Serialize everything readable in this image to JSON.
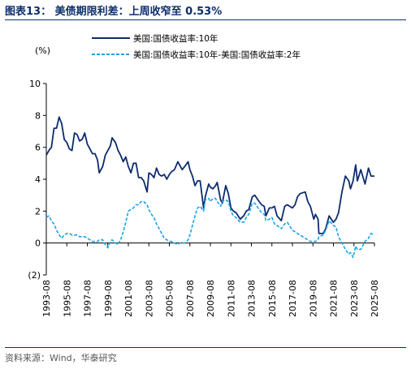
{
  "header": {
    "title": "图表13：  美债期限利差：上周收窄至 0.53%"
  },
  "footer": {
    "source": "资料来源：Wind，华泰研究"
  },
  "chart_data": {
    "type": "line",
    "title": "",
    "xlabel": "",
    "ylabel": "(%)",
    "ylim": [
      -2,
      10
    ],
    "yticks": [
      -2,
      0,
      2,
      4,
      6,
      8,
      10
    ],
    "ytick_labels": [
      "(2)",
      "0",
      "2",
      "4",
      "6",
      "8",
      "10"
    ],
    "xlim": [
      "1993-08",
      "2025-08"
    ],
    "xticks": [
      "1993-08",
      "1995-08",
      "1997-08",
      "1999-08",
      "2001-08",
      "2003-08",
      "2005-08",
      "2007-08",
      "2009-08",
      "2011-08",
      "2013-08",
      "2015-08",
      "2017-08",
      "2019-08",
      "2021-08",
      "2023-08",
      "2025-08"
    ],
    "grid": false,
    "legend_position": "top",
    "colors": {
      "series1": "#0d2c6c",
      "series2": "#1aa3e8"
    },
    "series": [
      {
        "name": "美国:国债收益率:10年",
        "style": "solid",
        "x": [
          "1993-08",
          "1993-11",
          "1994-02",
          "1994-05",
          "1994-08",
          "1994-11",
          "1995-02",
          "1995-05",
          "1995-08",
          "1995-11",
          "1996-02",
          "1996-05",
          "1996-08",
          "1996-11",
          "1997-02",
          "1997-05",
          "1997-08",
          "1997-11",
          "1998-02",
          "1998-05",
          "1998-08",
          "1998-10",
          "1999-02",
          "1999-05",
          "1999-08",
          "1999-11",
          "2000-01",
          "2000-05",
          "2000-08",
          "2000-11",
          "2001-02",
          "2001-05",
          "2001-08",
          "2001-11",
          "2002-02",
          "2002-05",
          "2002-08",
          "2002-11",
          "2003-02",
          "2003-06",
          "2003-08",
          "2003-11",
          "2004-02",
          "2004-05",
          "2004-08",
          "2004-11",
          "2005-02",
          "2005-05",
          "2005-08",
          "2005-11",
          "2006-02",
          "2006-06",
          "2006-08",
          "2006-11",
          "2007-02",
          "2007-06",
          "2007-08",
          "2007-11",
          "2008-02",
          "2008-05",
          "2008-08",
          "2008-12",
          "2009-02",
          "2009-06",
          "2009-08",
          "2009-11",
          "2010-02",
          "2010-04",
          "2010-08",
          "2010-10",
          "2011-02",
          "2011-05",
          "2011-08",
          "2011-11",
          "2012-02",
          "2012-07",
          "2012-11",
          "2013-02",
          "2013-05",
          "2013-09",
          "2013-12",
          "2014-05",
          "2014-08",
          "2014-11",
          "2015-01",
          "2015-05",
          "2015-08",
          "2015-11",
          "2016-02",
          "2016-07",
          "2016-11",
          "2017-02",
          "2017-08",
          "2017-11",
          "2018-02",
          "2018-05",
          "2018-11",
          "2019-02",
          "2019-05",
          "2019-09",
          "2019-11",
          "2020-02",
          "2020-03",
          "2020-08",
          "2020-11",
          "2021-03",
          "2021-08",
          "2021-11",
          "2022-02",
          "2022-06",
          "2022-10",
          "2023-02",
          "2023-04",
          "2023-07",
          "2023-10",
          "2023-12",
          "2024-04",
          "2024-09",
          "2025-01",
          "2025-04",
          "2025-08"
        ],
        "values": [
          5.5,
          5.8,
          6.0,
          7.2,
          7.2,
          7.9,
          7.5,
          6.5,
          6.3,
          5.9,
          5.8,
          6.9,
          6.8,
          6.4,
          6.5,
          6.9,
          6.2,
          5.9,
          5.6,
          5.6,
          5.2,
          4.4,
          4.8,
          5.5,
          5.8,
          6.1,
          6.6,
          6.3,
          5.8,
          5.5,
          5.1,
          5.4,
          4.8,
          4.4,
          5.0,
          5.0,
          4.1,
          4.1,
          3.9,
          3.2,
          4.4,
          4.3,
          4.1,
          4.7,
          4.3,
          4.2,
          4.3,
          4.0,
          4.3,
          4.5,
          4.6,
          5.1,
          4.9,
          4.6,
          4.8,
          5.1,
          4.6,
          4.2,
          3.6,
          3.9,
          3.9,
          2.2,
          2.9,
          3.7,
          3.5,
          3.4,
          3.6,
          3.8,
          2.7,
          2.5,
          3.6,
          3.1,
          2.2,
          2.0,
          1.9,
          1.5,
          1.7,
          2.0,
          2.1,
          2.9,
          3.0,
          2.6,
          2.4,
          2.3,
          1.7,
          2.2,
          2.2,
          2.3,
          1.7,
          1.4,
          2.3,
          2.4,
          2.2,
          2.4,
          2.9,
          3.1,
          3.2,
          2.6,
          2.3,
          1.5,
          1.8,
          1.5,
          0.6,
          0.6,
          0.9,
          1.7,
          1.3,
          1.5,
          1.9,
          3.2,
          4.2,
          3.9,
          3.4,
          3.9,
          4.9,
          3.9,
          4.6,
          3.7,
          4.7,
          4.2,
          4.2
        ]
      },
      {
        "name": "美国:国债收益率:10年-美国:国债收益率:2年",
        "style": "dashed",
        "x": [
          "1993-08",
          "1993-11",
          "1994-02",
          "1994-05",
          "1994-08",
          "1994-11",
          "1995-02",
          "1995-05",
          "1995-08",
          "1995-11",
          "1996-02",
          "1996-05",
          "1996-08",
          "1996-11",
          "1997-02",
          "1997-05",
          "1997-08",
          "1997-11",
          "1998-02",
          "1998-05",
          "1998-08",
          "1998-10",
          "1999-02",
          "1999-05",
          "1999-08",
          "1999-11",
          "2000-01",
          "2000-05",
          "2000-08",
          "2000-11",
          "2001-02",
          "2001-05",
          "2001-08",
          "2001-11",
          "2002-02",
          "2002-05",
          "2002-08",
          "2002-11",
          "2003-02",
          "2003-06",
          "2003-08",
          "2003-11",
          "2004-02",
          "2004-05",
          "2004-08",
          "2004-11",
          "2005-02",
          "2005-05",
          "2005-08",
          "2005-11",
          "2006-02",
          "2006-06",
          "2006-08",
          "2006-11",
          "2007-02",
          "2007-06",
          "2007-08",
          "2007-11",
          "2008-02",
          "2008-05",
          "2008-08",
          "2008-12",
          "2009-02",
          "2009-06",
          "2009-08",
          "2009-11",
          "2010-02",
          "2010-04",
          "2010-08",
          "2010-10",
          "2011-02",
          "2011-05",
          "2011-08",
          "2011-11",
          "2012-02",
          "2012-07",
          "2012-11",
          "2013-02",
          "2013-05",
          "2013-09",
          "2013-12",
          "2014-05",
          "2014-08",
          "2014-11",
          "2015-01",
          "2015-05",
          "2015-08",
          "2015-11",
          "2016-02",
          "2016-07",
          "2016-11",
          "2017-02",
          "2017-08",
          "2017-11",
          "2018-02",
          "2018-05",
          "2018-11",
          "2019-02",
          "2019-05",
          "2019-09",
          "2019-11",
          "2020-02",
          "2020-03",
          "2020-08",
          "2020-11",
          "2021-03",
          "2021-08",
          "2021-11",
          "2022-02",
          "2022-06",
          "2022-10",
          "2023-02",
          "2023-04",
          "2023-07",
          "2023-10",
          "2023-12",
          "2024-04",
          "2024-09",
          "2025-01",
          "2025-04",
          "2025-08"
        ],
        "values": [
          1.6,
          1.7,
          1.4,
          1.2,
          0.8,
          0.5,
          0.3,
          0.5,
          0.6,
          0.6,
          0.5,
          0.5,
          0.5,
          0.4,
          0.4,
          0.4,
          0.3,
          0.2,
          0.1,
          0.1,
          0.1,
          0.2,
          0.2,
          -0.1,
          -0.3,
          0.1,
          0.2,
          0.0,
          -0.1,
          0.2,
          0.7,
          1.3,
          2.0,
          2.1,
          2.2,
          2.4,
          2.4,
          2.6,
          2.6,
          2.4,
          2.1,
          1.8,
          1.6,
          1.2,
          0.9,
          0.6,
          0.3,
          0.2,
          0.1,
          0.1,
          0.0,
          -0.1,
          0.0,
          0.0,
          0.0,
          0.2,
          0.5,
          1.1,
          1.7,
          2.2,
          2.3,
          2.0,
          2.7,
          2.8,
          2.6,
          2.8,
          2.8,
          2.6,
          2.3,
          2.6,
          2.7,
          2.6,
          2.0,
          1.7,
          1.6,
          1.3,
          1.3,
          1.6,
          1.8,
          2.5,
          2.5,
          2.1,
          1.9,
          1.8,
          1.4,
          1.5,
          1.6,
          1.2,
          1.1,
          0.9,
          1.2,
          1.3,
          0.8,
          0.7,
          0.6,
          0.5,
          0.3,
          0.2,
          0.1,
          0.1,
          0.1,
          0.2,
          0.4,
          0.5,
          0.8,
          1.4,
          1.1,
          1.0,
          0.4,
          0.0,
          -0.4,
          -0.7,
          -0.6,
          -0.9,
          -0.2,
          -0.4,
          -0.4,
          0.1,
          0.3,
          0.6,
          0.5
        ]
      }
    ]
  }
}
